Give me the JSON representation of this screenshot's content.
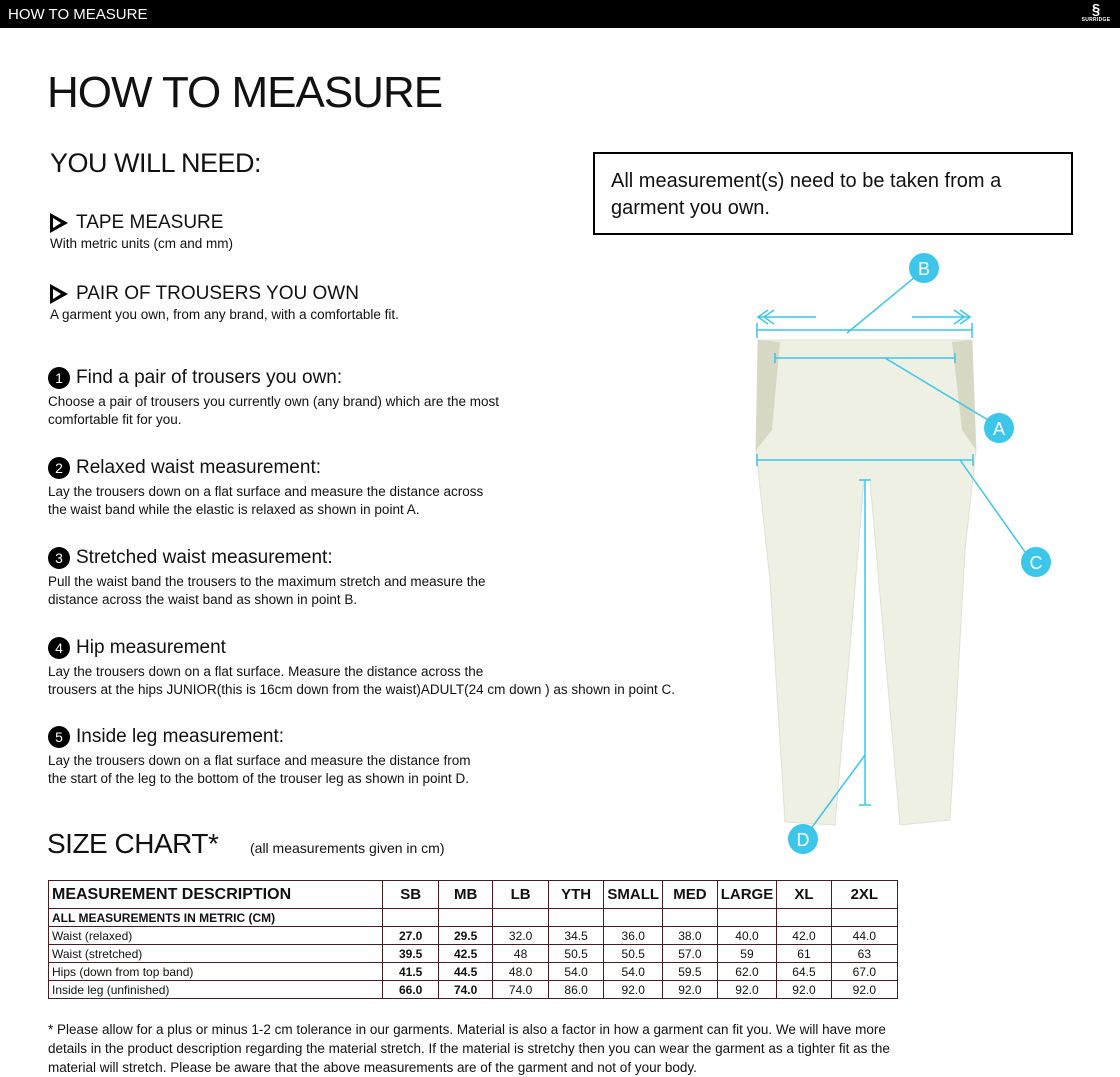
{
  "topbar": {
    "title": "HOW TO MEASURE",
    "logo": "SURRIDGE"
  },
  "title": "HOW TO MEASURE",
  "you_will_need": {
    "heading": "YOU WILL NEED:",
    "items": [
      {
        "label": "TAPE MEASURE",
        "desc": "With metric units (cm and mm)"
      },
      {
        "label": "PAIR OF TROUSERS YOU OWN",
        "desc": "A garment you own, from any brand, with a comfortable fit."
      }
    ]
  },
  "note": "All measurement(s) need to be taken from a garment you own.",
  "steps": [
    {
      "num": "1",
      "title": "Find a pair of trousers you own:",
      "desc": "Choose a pair of trousers you currently own (any brand) which are the most\ncomfortable fit for you."
    },
    {
      "num": "2",
      "title": "Relaxed waist measurement:",
      "desc": "Lay the trousers down on a flat surface and measure the distance across\nthe waist band while the elastic is relaxed as shown in point A."
    },
    {
      "num": "3",
      "title": "Stretched waist measurement:",
      "desc": "Pull the waist band the trousers to the maximum stretch and measure the\ndistance across the waist band as shown in point B."
    },
    {
      "num": "4",
      "title": "Hip measurement",
      "desc": "Lay the trousers down on a flat surface. Measure the distance across the\ntrousers at the hips JUNIOR(this is 16cm down from the waist)ADULT(24 cm down ) as shown in point C."
    },
    {
      "num": "5",
      "title": "Inside leg measurement:",
      "desc": "Lay the trousers down on a flat surface and measure the distance from\nthe start of the leg to the bottom of the trouser leg as shown in point D."
    }
  ],
  "diagram": {
    "labels": [
      "A",
      "B",
      "C",
      "D"
    ],
    "accent": "#3cc6ea",
    "garment_color": "#eef0e3"
  },
  "size_chart": {
    "title": "SIZE CHART*",
    "note": "(all measurements given in cm)",
    "headers": [
      "MEASUREMENT DESCRIPTION",
      "SB",
      "MB",
      "LB",
      "YTH",
      "SMALL",
      "MED",
      "LARGE",
      "XL",
      "2XL"
    ],
    "subheader": "ALL MEASUREMENTS IN METRIC (CM)",
    "rows": [
      {
        "label": "Waist (relaxed)",
        "values": [
          "27.0",
          "29.5",
          "32.0",
          "34.5",
          "36.0",
          "38.0",
          "40.0",
          "42.0",
          "44.0"
        ]
      },
      {
        "label": "Waist (stretched)",
        "values": [
          "39.5",
          "42.5",
          "48",
          "50.5",
          "50.5",
          "57.0",
          "59",
          "61",
          "63"
        ]
      },
      {
        "label": "Hips (down from top band)",
        "values": [
          "41.5",
          "44.5",
          "48.0",
          "54.0",
          "54.0",
          "59.5",
          "62.0",
          "64.5",
          "67.0"
        ]
      },
      {
        "label": "Inside leg (unfinished)",
        "values": [
          "66.0",
          "74.0",
          "74.0",
          "86.0",
          "92.0",
          "92.0",
          "92.0",
          "92.0",
          "92.0"
        ]
      }
    ],
    "border_color": "#4a1c22"
  },
  "footnote": "* Please allow for a plus or minus 1-2 cm tolerance in our garments. Material is also a factor in how a garment can fit you. We will have more details in the product description regarding the material stretch.  If the material is stretchy then you can wear the garment as a tighter fit as the material will stretch.  Please be aware that the above measurements are of the garment and not of your body."
}
